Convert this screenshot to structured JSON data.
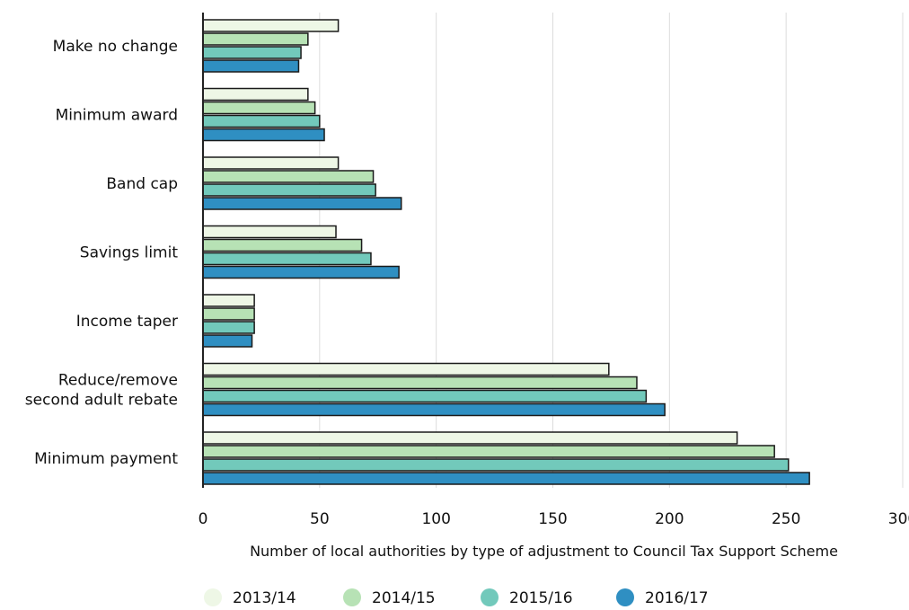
{
  "chart_data": {
    "type": "bar",
    "orientation": "horizontal",
    "categories": [
      "Make no change",
      "Minimum award",
      "Band cap",
      "Savings limit",
      "Income taper",
      "Reduce/remove second adult rebate",
      "Minimum payment"
    ],
    "category_lines": [
      [
        "Make no change"
      ],
      [
        "Minimum award"
      ],
      [
        "Band cap"
      ],
      [
        "Savings limit"
      ],
      [
        "Income taper"
      ],
      [
        "Reduce/remove",
        "second adult rebate"
      ],
      [
        "Minimum payment"
      ]
    ],
    "series": [
      {
        "name": "2013/14",
        "color": "#eef7e6",
        "values": [
          58,
          45,
          58,
          57,
          22,
          174,
          229
        ]
      },
      {
        "name": "2014/15",
        "color": "#b7e2b5",
        "values": [
          45,
          48,
          73,
          68,
          22,
          186,
          245
        ]
      },
      {
        "name": "2015/16",
        "color": "#72c9bb",
        "values": [
          42,
          50,
          74,
          72,
          22,
          190,
          251
        ]
      },
      {
        "name": "2016/17",
        "color": "#2f8fc2",
        "values": [
          41,
          52,
          85,
          84,
          21,
          198,
          260
        ]
      }
    ],
    "xlim": [
      0,
      300
    ],
    "xticks": [
      0,
      50,
      100,
      150,
      200,
      250,
      300
    ],
    "xlabel": "Number of local authorities by type of adjustment to Council Tax Support Scheme",
    "title": "",
    "grid": true,
    "legend_position": "bottom"
  }
}
